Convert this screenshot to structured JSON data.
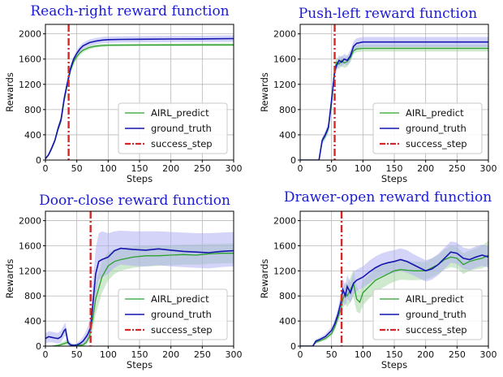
{
  "chart_data": [
    {
      "type": "line",
      "title": "Reach-right reward function",
      "xlabel": "Steps",
      "ylabel": "Rewards",
      "xlim": [
        0,
        300
      ],
      "ylim": [
        0,
        2150
      ],
      "xticks": [
        0,
        50,
        100,
        150,
        200,
        250,
        300
      ],
      "yticks": [
        0,
        400,
        800,
        1200,
        1600,
        2000
      ],
      "grid": true,
      "legend_position": "bottom-right",
      "success_step": 37,
      "series": [
        {
          "name": "AIRL_predict",
          "color": "#2ca02c",
          "band_color": "#9fd49f",
          "x": [
            0,
            5,
            10,
            15,
            20,
            25,
            30,
            35,
            40,
            45,
            50,
            55,
            60,
            70,
            80,
            90,
            100,
            120,
            150,
            200,
            250,
            300
          ],
          "y": [
            20,
            80,
            180,
            300,
            480,
            620,
            950,
            1200,
            1420,
            1560,
            1640,
            1700,
            1740,
            1785,
            1805,
            1815,
            1820,
            1822,
            1823,
            1824,
            1825,
            1826
          ],
          "lower": [
            10,
            60,
            150,
            270,
            440,
            580,
            900,
            1150,
            1370,
            1510,
            1600,
            1660,
            1705,
            1755,
            1780,
            1792,
            1798,
            1800,
            1801,
            1802,
            1803,
            1804
          ],
          "upper": [
            30,
            100,
            210,
            330,
            520,
            660,
            1000,
            1250,
            1470,
            1610,
            1680,
            1740,
            1775,
            1815,
            1830,
            1838,
            1842,
            1844,
            1845,
            1846,
            1847,
            1848
          ]
        },
        {
          "name": "ground_truth",
          "color": "#1515b0",
          "band_color": "#a9a9f2",
          "x": [
            0,
            5,
            10,
            15,
            20,
            25,
            30,
            35,
            40,
            45,
            50,
            55,
            60,
            70,
            80,
            90,
            100,
            120,
            150,
            200,
            250,
            300
          ],
          "y": [
            20,
            85,
            190,
            310,
            500,
            650,
            980,
            1230,
            1450,
            1600,
            1690,
            1760,
            1810,
            1860,
            1885,
            1900,
            1908,
            1912,
            1915,
            1918,
            1920,
            1925
          ],
          "lower": [
            10,
            65,
            160,
            280,
            460,
            610,
            930,
            1180,
            1400,
            1550,
            1640,
            1710,
            1760,
            1810,
            1835,
            1850,
            1858,
            1862,
            1865,
            1868,
            1870,
            1872
          ],
          "upper": [
            30,
            105,
            220,
            340,
            540,
            690,
            1030,
            1280,
            1500,
            1650,
            1740,
            1810,
            1860,
            1910,
            1935,
            1950,
            1958,
            1962,
            1965,
            1968,
            1970,
            1978
          ]
        }
      ]
    },
    {
      "type": "line",
      "title": "Push-left reward function",
      "xlabel": "Steps",
      "ylabel": "Rewards",
      "xlim": [
        0,
        300
      ],
      "ylim": [
        0,
        2150
      ],
      "xticks": [
        0,
        50,
        100,
        150,
        200,
        250,
        300
      ],
      "yticks": [
        0,
        400,
        800,
        1200,
        1600,
        2000
      ],
      "grid": true,
      "legend_position": "bottom-right",
      "success_step": 55,
      "series": [
        {
          "name": "AIRL_predict",
          "color": "#2ca02c",
          "band_color": "#9fd49f",
          "x": [
            0,
            30,
            35,
            40,
            45,
            50,
            55,
            58,
            62,
            66,
            70,
            75,
            80,
            85,
            90,
            100,
            150,
            200,
            250,
            300
          ],
          "y": [
            0,
            0,
            300,
            380,
            500,
            900,
            1450,
            1550,
            1520,
            1580,
            1540,
            1560,
            1620,
            1730,
            1760,
            1770,
            1770,
            1770,
            1770,
            1770
          ],
          "lower": [
            0,
            0,
            250,
            320,
            430,
            820,
            1370,
            1470,
            1440,
            1500,
            1460,
            1480,
            1550,
            1680,
            1710,
            1720,
            1720,
            1720,
            1720,
            1720
          ],
          "upper": [
            0,
            0,
            350,
            440,
            570,
            980,
            1530,
            1630,
            1600,
            1660,
            1620,
            1640,
            1690,
            1790,
            1820,
            1830,
            1830,
            1830,
            1830,
            1830
          ]
        },
        {
          "name": "ground_truth",
          "color": "#1515b0",
          "band_color": "#a9a9f2",
          "x": [
            0,
            30,
            35,
            40,
            45,
            50,
            55,
            58,
            62,
            66,
            70,
            75,
            80,
            85,
            90,
            100,
            150,
            200,
            250,
            300
          ],
          "y": [
            0,
            0,
            310,
            400,
            520,
            950,
            1400,
            1500,
            1580,
            1550,
            1600,
            1580,
            1650,
            1800,
            1850,
            1870,
            1870,
            1870,
            1870,
            1870
          ],
          "lower": [
            0,
            0,
            260,
            340,
            450,
            860,
            1320,
            1420,
            1500,
            1470,
            1520,
            1500,
            1560,
            1720,
            1770,
            1790,
            1790,
            1790,
            1790,
            1790
          ],
          "upper": [
            0,
            0,
            360,
            460,
            590,
            1040,
            1480,
            1580,
            1660,
            1630,
            1680,
            1660,
            1740,
            1880,
            1930,
            1950,
            1950,
            1950,
            1950,
            1950
          ]
        }
      ]
    },
    {
      "type": "line",
      "title": "Door-close reward function",
      "xlabel": "Steps",
      "ylabel": "Rewards",
      "xlim": [
        0,
        300
      ],
      "ylim": [
        0,
        2150
      ],
      "xticks": [
        0,
        50,
        100,
        150,
        200,
        250,
        300
      ],
      "yticks": [
        0,
        400,
        800,
        1200,
        1600,
        2000
      ],
      "grid": true,
      "legend_position": "bottom-right",
      "success_step": 72,
      "series": [
        {
          "name": "AIRL_predict",
          "color": "#2ca02c",
          "band_color": "#9fd49f",
          "x": [
            0,
            10,
            20,
            30,
            35,
            40,
            50,
            60,
            65,
            70,
            75,
            80,
            90,
            100,
            110,
            120,
            140,
            160,
            180,
            200,
            220,
            240,
            260,
            280,
            300
          ],
          "y": [
            0,
            0,
            10,
            40,
            60,
            20,
            10,
            20,
            60,
            150,
            400,
            750,
            1100,
            1280,
            1350,
            1380,
            1420,
            1440,
            1440,
            1450,
            1460,
            1450,
            1470,
            1480,
            1480
          ],
          "lower": [
            0,
            0,
            0,
            10,
            20,
            0,
            0,
            0,
            20,
            80,
            250,
            500,
            850,
            1050,
            1150,
            1200,
            1250,
            1270,
            1280,
            1290,
            1300,
            1300,
            1310,
            1320,
            1320
          ],
          "upper": [
            0,
            0,
            30,
            80,
            110,
            50,
            30,
            50,
            120,
            250,
            600,
            1000,
            1350,
            1500,
            1540,
            1560,
            1590,
            1600,
            1610,
            1610,
            1620,
            1620,
            1630,
            1630,
            1640
          ]
        },
        {
          "name": "ground_truth",
          "color": "#1515b0",
          "band_color": "#a9a9f2",
          "x": [
            0,
            5,
            10,
            15,
            20,
            25,
            30,
            32,
            36,
            40,
            45,
            50,
            55,
            60,
            65,
            68,
            72,
            75,
            80,
            85,
            90,
            100,
            110,
            120,
            140,
            160,
            180,
            200,
            220,
            240,
            260,
            280,
            300
          ],
          "y": [
            120,
            150,
            140,
            130,
            120,
            150,
            250,
            270,
            60,
            20,
            10,
            20,
            40,
            80,
            150,
            200,
            300,
            600,
            1150,
            1350,
            1380,
            1420,
            1520,
            1560,
            1540,
            1530,
            1550,
            1530,
            1510,
            1500,
            1490,
            1510,
            1520
          ],
          "lower": [
            50,
            60,
            60,
            50,
            40,
            60,
            150,
            170,
            10,
            0,
            0,
            0,
            0,
            20,
            60,
            90,
            150,
            350,
            800,
            1050,
            1100,
            1150,
            1250,
            1300,
            1280,
            1270,
            1290,
            1270,
            1260,
            1250,
            1240,
            1260,
            1270
          ],
          "upper": [
            200,
            240,
            230,
            220,
            210,
            250,
            350,
            370,
            120,
            50,
            30,
            50,
            90,
            150,
            250,
            320,
            480,
            950,
            1550,
            1800,
            1830,
            1800,
            1830,
            1840,
            1830,
            1830,
            1830,
            1820,
            1810,
            1800,
            1800,
            1810,
            1820
          ]
        }
      ]
    },
    {
      "type": "line",
      "title": "Drawer-open reward function",
      "xlabel": "Steps",
      "ylabel": "Rewards",
      "xlim": [
        0,
        300
      ],
      "ylim": [
        0,
        2150
      ],
      "xticks": [
        0,
        50,
        100,
        150,
        200,
        250,
        300
      ],
      "yticks": [
        0,
        400,
        800,
        1200,
        1600,
        2000
      ],
      "grid": true,
      "legend_position": "bottom-right",
      "success_step": 66,
      "series": [
        {
          "name": "AIRL_predict",
          "color": "#2ca02c",
          "band_color": "#9fd49f",
          "x": [
            0,
            20,
            25,
            30,
            40,
            50,
            55,
            60,
            65,
            68,
            72,
            75,
            80,
            85,
            90,
            95,
            100,
            110,
            120,
            130,
            140,
            150,
            160,
            180,
            200,
            210,
            220,
            230,
            240,
            250,
            260,
            270,
            280,
            290,
            300
          ],
          "y": [
            0,
            0,
            60,
            80,
            120,
            200,
            300,
            450,
            600,
            750,
            850,
            800,
            900,
            1000,
            750,
            700,
            850,
            950,
            1050,
            1100,
            1150,
            1200,
            1220,
            1200,
            1200,
            1250,
            1300,
            1380,
            1420,
            1400,
            1300,
            1350,
            1380,
            1400,
            1450
          ],
          "lower": [
            0,
            0,
            40,
            60,
            90,
            160,
            250,
            380,
            500,
            600,
            680,
            620,
            700,
            780,
            550,
            520,
            650,
            760,
            860,
            920,
            980,
            1030,
            1060,
            1050,
            1060,
            1100,
            1150,
            1220,
            1260,
            1240,
            1150,
            1200,
            1220,
            1240,
            1290
          ],
          "upper": [
            0,
            0,
            80,
            100,
            150,
            240,
            350,
            520,
            700,
            900,
            1020,
            980,
            1100,
            1220,
            950,
            880,
            1050,
            1140,
            1240,
            1280,
            1320,
            1370,
            1380,
            1350,
            1340,
            1400,
            1450,
            1540,
            1600,
            1580,
            1480,
            1520,
            1560,
            1600,
            1680
          ]
        },
        {
          "name": "ground_truth",
          "color": "#1515b0",
          "band_color": "#a9a9f2",
          "x": [
            0,
            20,
            25,
            30,
            40,
            50,
            55,
            60,
            65,
            68,
            72,
            75,
            80,
            85,
            90,
            100,
            110,
            120,
            130,
            140,
            150,
            160,
            170,
            180,
            190,
            200,
            210,
            220,
            230,
            240,
            250,
            260,
            270,
            280,
            290,
            300
          ],
          "y": [
            0,
            0,
            80,
            100,
            150,
            250,
            350,
            500,
            700,
            900,
            800,
            950,
            850,
            1000,
            1050,
            1100,
            1180,
            1250,
            1300,
            1330,
            1350,
            1380,
            1350,
            1300,
            1250,
            1200,
            1230,
            1300,
            1400,
            1500,
            1480,
            1400,
            1380,
            1420,
            1450,
            1420
          ],
          "lower": [
            0,
            0,
            50,
            70,
            110,
            190,
            280,
            400,
            560,
            720,
            640,
            760,
            690,
            820,
            880,
            930,
            1000,
            1070,
            1120,
            1150,
            1170,
            1200,
            1170,
            1130,
            1080,
            1030,
            1060,
            1130,
            1230,
            1330,
            1310,
            1230,
            1210,
            1250,
            1280,
            1250
          ],
          "upper": [
            0,
            0,
            110,
            130,
            190,
            310,
            420,
            600,
            840,
            1080,
            960,
            1140,
            1010,
            1180,
            1220,
            1270,
            1360,
            1430,
            1480,
            1510,
            1530,
            1560,
            1530,
            1470,
            1420,
            1370,
            1400,
            1470,
            1570,
            1670,
            1650,
            1570,
            1550,
            1590,
            1620,
            1590
          ]
        }
      ]
    }
  ],
  "legend": {
    "airl_label": "AIRL_predict",
    "truth_label": "ground_truth",
    "success_label": "success_step",
    "success_color": "#d62728"
  }
}
